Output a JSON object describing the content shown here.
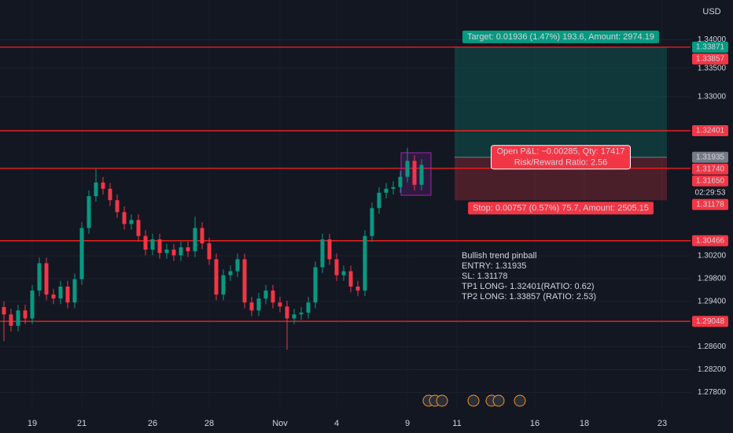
{
  "chart_data": {
    "type": "candlestick",
    "currency": "USD",
    "categories": [
      null,
      null,
      null,
      null,
      "19",
      null,
      null,
      null,
      null,
      null,
      null,
      "21",
      null,
      null,
      null,
      null,
      null,
      null,
      null,
      null,
      null,
      "26",
      null,
      null,
      null,
      null,
      null,
      null,
      null,
      "28",
      null,
      null,
      null,
      null,
      null,
      null,
      null,
      null,
      null,
      "Nov",
      null,
      null,
      null,
      null,
      null,
      null,
      null,
      "4",
      null,
      null,
      null,
      null,
      null,
      null,
      null,
      null,
      null,
      "9",
      null,
      null,
      null,
      null,
      null,
      null,
      "11",
      null,
      null,
      null,
      null,
      null,
      null,
      null,
      null,
      null,
      null,
      "16",
      null,
      null,
      null,
      null,
      null,
      null,
      "18",
      null,
      null,
      null,
      null,
      null,
      null,
      null,
      null,
      null,
      null,
      "23"
    ],
    "open": [
      1.293,
      1.2917,
      1.2897,
      1.2924,
      1.291,
      1.2959,
      1.3007,
      1.2952,
      1.2945,
      1.2966,
      1.2938,
      1.2979,
      1.3069,
      1.3125,
      1.3149,
      1.3138,
      1.3118,
      1.3097,
      1.3076,
      1.3083,
      1.3055,
      1.3031,
      1.3049,
      1.3025,
      1.3031,
      1.3021,
      1.3035,
      1.3028,
      1.3069,
      1.3042,
      1.3014,
      1.2952,
      1.2986,
      1.2993,
      1.3014,
      1.2938,
      1.2924,
      1.2945,
      1.2959,
      1.2938,
      1.2931,
      1.291,
      1.2917,
      1.292,
      1.2938,
      1.3,
      1.3049,
      1.3014,
      1.2986,
      1.2993,
      1.2966,
      1.2959,
      1.3055,
      1.3104,
      1.3131,
      1.3138,
      1.3141,
      1.3159,
      1.3187,
      1.3145,
      null,
      null,
      null,
      null,
      null,
      null,
      null,
      null,
      null,
      null,
      null,
      null,
      null,
      null,
      null,
      null,
      null,
      null,
      null,
      null,
      null,
      null,
      null,
      null,
      null,
      null,
      null,
      null,
      null,
      null,
      null,
      null,
      null,
      null
    ],
    "high": [
      1.294,
      1.2927,
      1.2934,
      1.2934,
      1.2969,
      1.3017,
      1.3017,
      1.2962,
      1.2976,
      1.2976,
      1.2989,
      1.3079,
      1.3135,
      1.3173,
      1.3159,
      1.3148,
      1.3128,
      1.3107,
      1.3093,
      1.3093,
      1.3065,
      1.3059,
      1.3059,
      1.3041,
      1.3041,
      1.3045,
      1.3045,
      1.3089,
      1.3079,
      1.3052,
      1.3024,
      1.2996,
      1.3003,
      1.3024,
      1.3024,
      1.2948,
      1.2955,
      1.2969,
      1.2969,
      1.2948,
      1.2941,
      1.2927,
      1.293,
      1.2948,
      1.301,
      1.3059,
      1.3059,
      1.3024,
      1.3003,
      1.3003,
      1.2976,
      1.3065,
      1.3114,
      1.3141,
      1.3148,
      1.3151,
      1.3169,
      1.321,
      1.3197,
      1.319,
      null,
      null,
      null,
      null,
      null,
      null,
      null,
      null,
      null,
      null,
      null,
      null,
      null,
      null,
      null,
      null,
      null,
      null,
      null,
      null,
      null,
      null,
      null,
      null,
      null,
      null,
      null,
      null,
      null,
      null,
      null,
      null,
      null,
      null
    ],
    "low": [
      1.287,
      1.2887,
      1.2887,
      1.29,
      1.29,
      1.2949,
      1.2942,
      1.2935,
      1.2935,
      1.2928,
      1.2928,
      1.2969,
      1.3059,
      1.3115,
      1.3128,
      1.3108,
      1.3087,
      1.3066,
      1.3066,
      1.3045,
      1.3021,
      1.3021,
      1.3015,
      1.3015,
      1.3011,
      1.3011,
      1.3018,
      1.3018,
      1.3032,
      1.3004,
      1.2942,
      1.2942,
      1.2976,
      1.2983,
      1.2928,
      1.2914,
      1.2914,
      1.2935,
      1.2928,
      1.2921,
      1.2855,
      1.29,
      1.2907,
      1.291,
      1.2928,
      1.299,
      1.3004,
      1.2976,
      1.2976,
      1.2956,
      1.2949,
      1.2949,
      1.3045,
      1.3094,
      1.3121,
      1.3128,
      1.3131,
      1.3149,
      1.3135,
      1.3135,
      null,
      null,
      null,
      null,
      null,
      null,
      null,
      null,
      null,
      null,
      null,
      null,
      null,
      null,
      null,
      null,
      null,
      null,
      null,
      null,
      null,
      null,
      null,
      null,
      null,
      null,
      null,
      null,
      null,
      null,
      null,
      null,
      null,
      null
    ],
    "close": [
      1.2917,
      1.2897,
      1.2924,
      1.291,
      1.2959,
      1.3007,
      1.2952,
      1.2945,
      1.2966,
      1.2938,
      1.2979,
      1.3069,
      1.3125,
      1.3149,
      1.3138,
      1.3118,
      1.3097,
      1.3076,
      1.3083,
      1.3055,
      1.3031,
      1.3049,
      1.3025,
      1.3031,
      1.3021,
      1.3035,
      1.3028,
      1.3069,
      1.3042,
      1.3014,
      1.2952,
      1.2986,
      1.2993,
      1.3014,
      1.2938,
      1.2924,
      1.2945,
      1.2959,
      1.2938,
      1.2931,
      1.291,
      1.2917,
      1.292,
      1.2938,
      1.3,
      1.3049,
      1.3014,
      1.2986,
      1.2993,
      1.2966,
      1.2959,
      1.3055,
      1.3104,
      1.3131,
      1.3138,
      1.3141,
      1.3159,
      1.3187,
      1.3145,
      1.318,
      null,
      null,
      null,
      null,
      null,
      null,
      null,
      null,
      null,
      null,
      null,
      null,
      null,
      null,
      null,
      null,
      null,
      null,
      null,
      null,
      null,
      null,
      null,
      null,
      null,
      null,
      null,
      null,
      null,
      null,
      null,
      null,
      null,
      null
    ],
    "up_color": "#089981",
    "down_color": "#f23645",
    "ylim": [
      1.275,
      1.347
    ],
    "yticks": [
      {
        "value": 1.34,
        "label": "1.34000"
      },
      {
        "value": 1.335,
        "label": "1.33500"
      },
      {
        "value": 1.33,
        "label": "1.33000"
      },
      {
        "value": 1.302,
        "label": "1.30200"
      },
      {
        "value": 1.298,
        "label": "1.29800"
      },
      {
        "value": 1.294,
        "label": "1.29400"
      },
      {
        "value": 1.286,
        "label": "1.28600"
      },
      {
        "value": 1.282,
        "label": "1.28200"
      },
      {
        "value": 1.278,
        "label": "1.27800"
      }
    ],
    "grid": true,
    "levels": [
      1.33871,
      1.32401,
      1.3174,
      1.30466,
      1.29048
    ],
    "level_color": "#ff1f1f",
    "price_badges": [
      {
        "value": 1.33871,
        "label": "1.33871",
        "color": "#089981"
      },
      {
        "value": 1.33857,
        "label": "1.33857",
        "color": "#f23645"
      },
      {
        "value": 1.32401,
        "label": "1.32401",
        "color": "#f23645"
      },
      {
        "value": 1.31935,
        "label": "1.31935",
        "color": "#787b86"
      },
      {
        "value": 1.3174,
        "label": "1.31740",
        "color": "#f23645"
      },
      {
        "value": 1.3165,
        "label": "1.31650",
        "color": "#f23645"
      },
      {
        "value": 1.31178,
        "label": "1.31178",
        "color": "#f23645"
      },
      {
        "value": 1.30466,
        "label": "1.30466",
        "color": "#f23645"
      },
      {
        "value": 1.29048,
        "label": "1.29048",
        "color": "#f23645"
      }
    ],
    "countdown": "02:29:53",
    "position": {
      "entry": 1.31935,
      "target": 1.33871,
      "stop": 1.31178,
      "target_label": "Target: 0.01936 (1.47%) 193.6, Amount: 2974.19",
      "pnl_label": [
        "Open P&L: −0.00285, Qty: 17417",
        "Risk/Reward Ratio: 2.56"
      ],
      "stop_label": "Stop: 0.00757 (0.57%) 75.7, Amount: 2505.15"
    },
    "annotation": [
      "Bullish trend pinball",
      "ENTRY: 1.31935",
      "SL: 1.31178",
      "TP1 LONG- 1.32401(RATIO: 0.62)",
      "TP2 LONG: 1.33857 (RATIO: 2.53)"
    ]
  }
}
